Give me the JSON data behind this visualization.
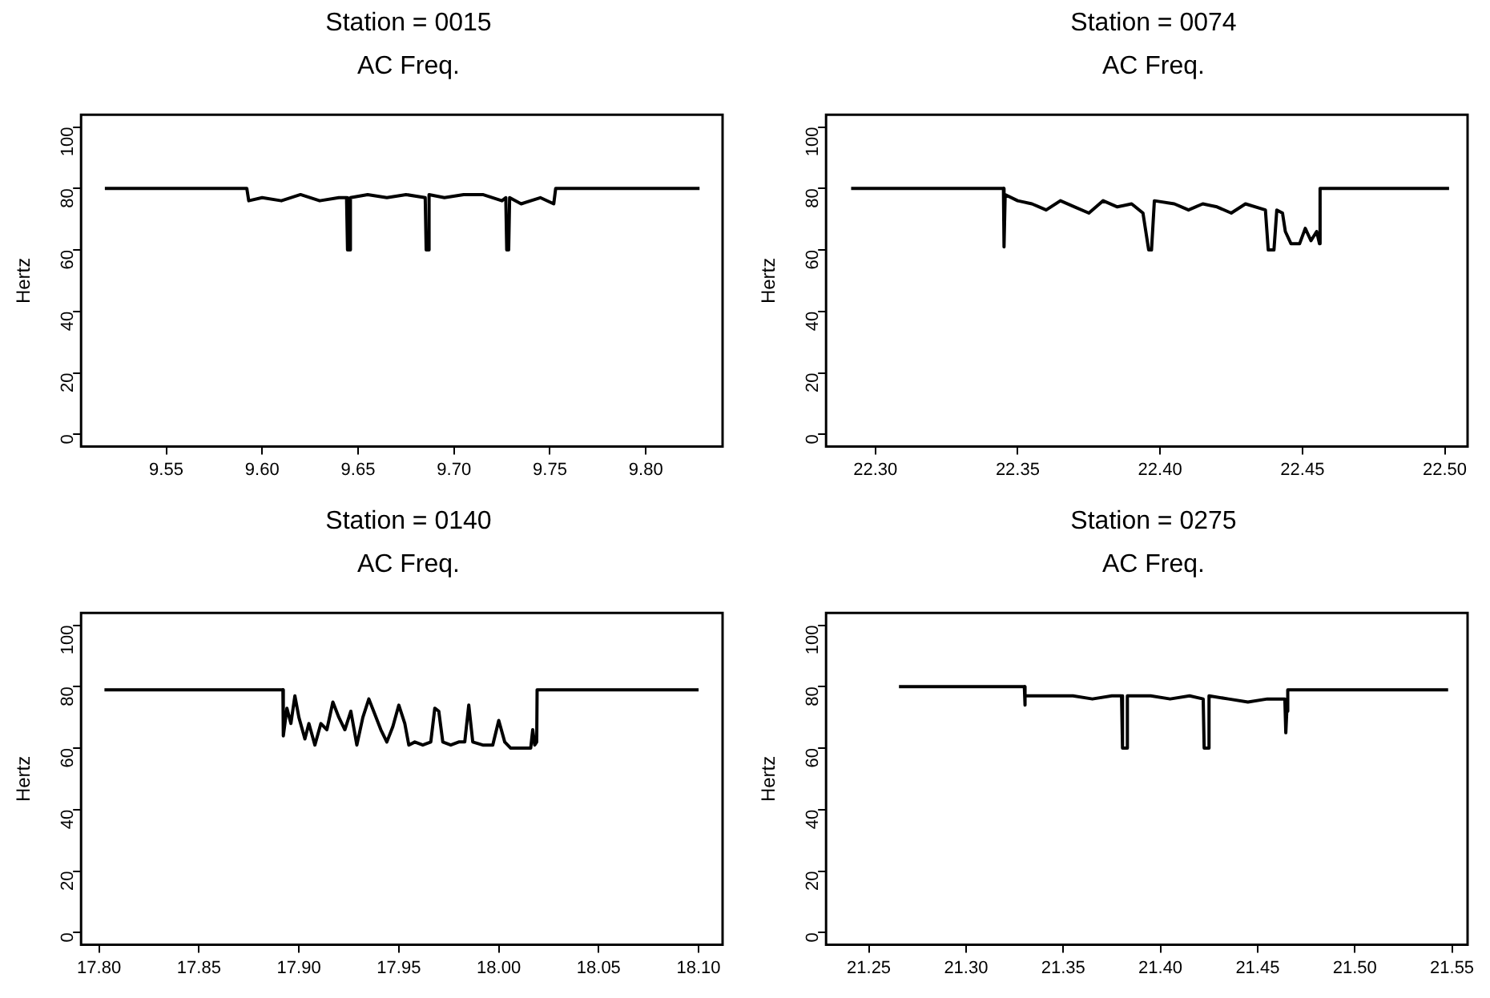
{
  "chart_data": [
    {
      "type": "line",
      "title": "Station = 0015",
      "subtitle": "AC Freq.",
      "ylabel": "Hertz",
      "series": [
        {
          "color": "#000000",
          "x": [
            9.518,
            9.592,
            9.593,
            9.6,
            9.61,
            9.62,
            9.63,
            9.64,
            9.644,
            9.6445,
            9.6455,
            9.646,
            9.655,
            9.665,
            9.675,
            9.685,
            9.6855,
            9.6865,
            9.687,
            9.695,
            9.705,
            9.715,
            9.725,
            9.727,
            9.7275,
            9.7285,
            9.729,
            9.735,
            9.745,
            9.752,
            9.753,
            9.828
          ],
          "values": [
            80,
            80,
            76,
            77,
            76,
            78,
            76,
            77,
            77,
            60,
            60,
            77,
            78,
            77,
            78,
            77,
            60,
            60,
            78,
            77,
            78,
            78,
            76,
            77,
            60,
            60,
            77,
            75,
            77,
            75,
            80,
            80
          ]
        }
      ],
      "xlim": [
        9.5056,
        9.84
      ],
      "ylim": [
        -4,
        104
      ],
      "xticks": [
        9.55,
        {
          "value": 9.6,
          "label": "9.60"
        },
        9.65,
        {
          "value": 9.7,
          "label": "9.70"
        },
        9.75,
        {
          "value": 9.8,
          "label": "9.80"
        }
      ],
      "yticks": [
        0,
        20,
        40,
        60,
        80,
        100
      ]
    },
    {
      "type": "line",
      "title": "Station = 0074",
      "subtitle": "AC Freq.",
      "ylabel": "Hertz",
      "series": [
        {
          "color": "#000000",
          "x": [
            22.2915,
            22.345,
            22.3452,
            22.3456,
            22.35,
            22.355,
            22.36,
            22.365,
            22.37,
            22.375,
            22.38,
            22.385,
            22.39,
            22.394,
            22.396,
            22.397,
            22.398,
            22.405,
            22.41,
            22.415,
            22.42,
            22.425,
            22.43,
            22.437,
            22.438,
            22.44,
            22.441,
            22.443,
            22.444,
            22.446,
            22.449,
            22.451,
            22.453,
            22.455,
            22.456,
            22.4562,
            22.5015
          ],
          "values": [
            80,
            80,
            61,
            78,
            76,
            75,
            73,
            76,
            74,
            72,
            76,
            74,
            75,
            72,
            60,
            60,
            76,
            75,
            73,
            75,
            74,
            72,
            75,
            73,
            60,
            60,
            73,
            72,
            66,
            62,
            62,
            67,
            63,
            66,
            62,
            80,
            80
          ]
        }
      ],
      "xlim": [
        22.2827,
        22.508
      ],
      "ylim": [
        -4,
        104
      ],
      "xticks": [
        {
          "value": 22.3,
          "label": "22.30"
        },
        22.35,
        {
          "value": 22.4,
          "label": "22.40"
        },
        22.45,
        {
          "value": 22.5,
          "label": "22.50"
        }
      ],
      "yticks": [
        0,
        20,
        40,
        60,
        80,
        100
      ]
    },
    {
      "type": "line",
      "title": "Station = 0140",
      "subtitle": "AC Freq.",
      "ylabel": "Hertz",
      "series": [
        {
          "color": "#000000",
          "x": [
            17.8027,
            17.892,
            17.8922,
            17.894,
            17.896,
            17.898,
            17.9,
            17.903,
            17.905,
            17.908,
            17.911,
            17.914,
            17.917,
            17.92,
            17.923,
            17.926,
            17.929,
            17.932,
            17.935,
            17.938,
            17.941,
            17.944,
            17.947,
            17.95,
            17.953,
            17.955,
            17.958,
            17.962,
            17.966,
            17.968,
            17.97,
            17.972,
            17.976,
            17.98,
            17.983,
            17.985,
            17.987,
            17.992,
            17.997,
            18.0,
            18.003,
            18.006,
            18.012,
            18.016,
            18.017,
            18.018,
            18.019,
            18.0192,
            18.1
          ],
          "values": [
            79,
            79,
            64,
            73,
            68,
            77,
            70,
            63,
            68,
            61,
            68,
            66,
            75,
            70,
            66,
            72,
            61,
            70,
            76,
            71,
            66,
            62,
            67,
            74,
            68,
            61,
            62,
            61,
            62,
            73,
            72,
            62,
            61,
            62,
            62,
            74,
            62,
            61,
            61,
            69,
            62,
            60,
            60,
            60,
            66,
            61,
            62,
            79,
            79
          ]
        }
      ],
      "xlim": [
        17.791,
        18.112
      ],
      "ylim": [
        -4,
        104
      ],
      "xticks": [
        {
          "value": 17.8,
          "label": "17.80"
        },
        17.85,
        {
          "value": 17.9,
          "label": "17.90"
        },
        17.95,
        {
          "value": 18.0,
          "label": "18.00"
        },
        18.05,
        {
          "value": 18.1,
          "label": "18.10"
        }
      ],
      "yticks": [
        0,
        20,
        40,
        60,
        80,
        100
      ]
    },
    {
      "type": "line",
      "title": "Station = 0275",
      "subtitle": "AC Freq.",
      "ylabel": "Hertz",
      "series": [
        {
          "color": "#000000",
          "x": [
            21.2655,
            21.33,
            21.3302,
            21.3305,
            21.345,
            21.355,
            21.365,
            21.375,
            21.38,
            21.3805,
            21.3825,
            21.383,
            21.395,
            21.405,
            21.415,
            21.422,
            21.4225,
            21.4245,
            21.425,
            21.435,
            21.445,
            21.455,
            21.464,
            21.4645,
            21.465,
            21.4655,
            21.548
          ],
          "values": [
            80,
            80,
            74,
            77,
            77,
            77,
            76,
            77,
            77,
            60,
            60,
            77,
            77,
            76,
            77,
            76,
            60,
            60,
            77,
            76,
            75,
            76,
            76,
            65,
            72,
            79,
            79
          ]
        }
      ],
      "xlim": [
        21.228,
        21.558
      ],
      "ylim": [
        -4,
        104
      ],
      "xticks": [
        21.25,
        {
          "value": 21.3,
          "label": "21.30"
        },
        21.35,
        {
          "value": 21.4,
          "label": "21.40"
        },
        21.45,
        {
          "value": 21.5,
          "label": "21.50"
        },
        21.55
      ],
      "yticks": [
        0,
        20,
        40,
        60,
        80,
        100
      ]
    }
  ]
}
